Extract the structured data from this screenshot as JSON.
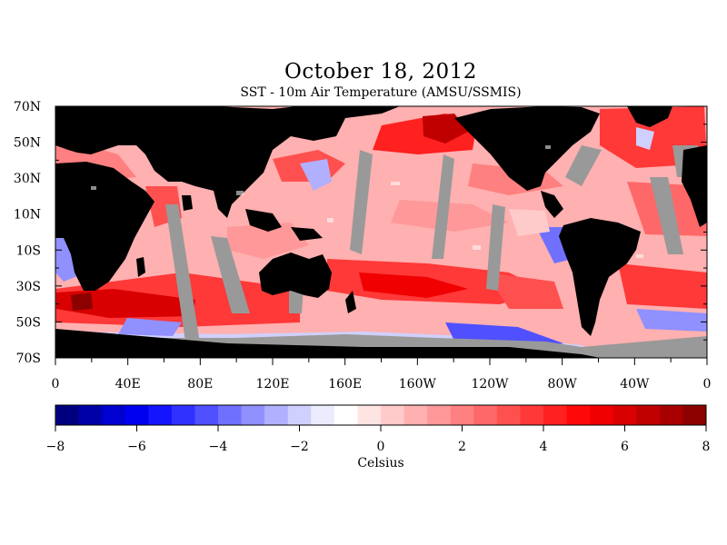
{
  "title": "October 18, 2012",
  "subtitle": "SST - 10m Air Temperature (AMSU/SSMIS)",
  "map": {
    "lat_labels": [
      "70N",
      "50N",
      "30N",
      "10N",
      "10S",
      "30S",
      "50S",
      "70S"
    ],
    "lon_labels": [
      "0",
      "40E",
      "80E",
      "120E",
      "160E",
      "160W",
      "120W",
      "80W",
      "40W",
      "0"
    ],
    "land_color": "#000000",
    "no_data_color": "#999999"
  },
  "colorbar": {
    "unit_label": "Celsius",
    "tick_labels": [
      "-8",
      "-6",
      "-4",
      "-2",
      "0",
      "2",
      "4",
      "6",
      "8"
    ],
    "range": [
      -8,
      8
    ],
    "colors": [
      "#00007f",
      "#0000a8",
      "#0000d0",
      "#0000f0",
      "#1414ff",
      "#3030ff",
      "#5050ff",
      "#7070ff",
      "#9090ff",
      "#b0b0ff",
      "#d0d0ff",
      "#ececff",
      "#ffffff",
      "#ffe4e4",
      "#ffcaca",
      "#ffb0b0",
      "#ff9898",
      "#ff8080",
      "#ff6868",
      "#ff5050",
      "#ff3838",
      "#ff2020",
      "#ff0808",
      "#f00000",
      "#d80000",
      "#c00000",
      "#a80000",
      "#8c0000"
    ]
  }
}
